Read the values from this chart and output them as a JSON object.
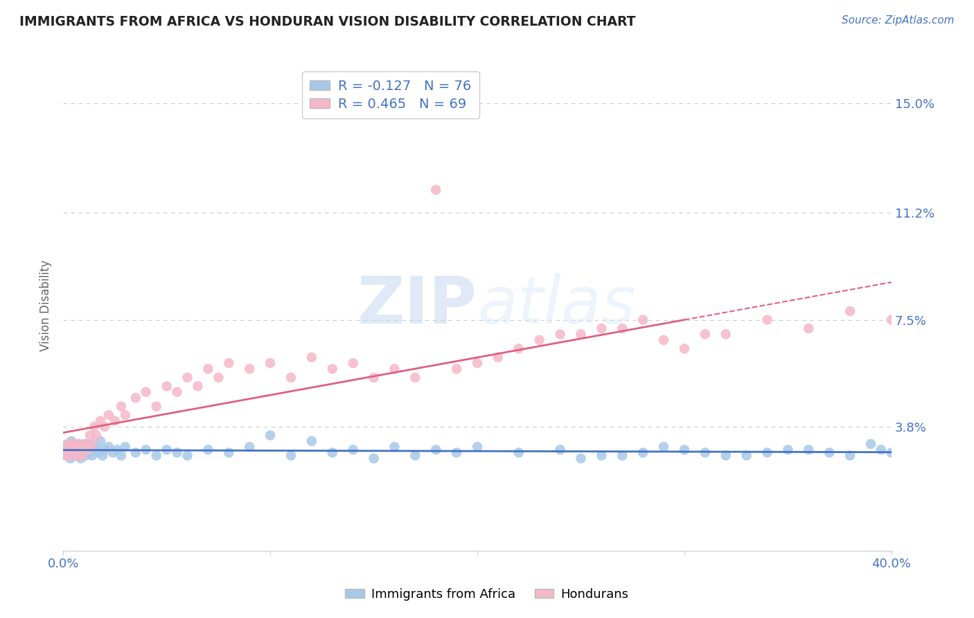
{
  "title": "IMMIGRANTS FROM AFRICA VS HONDURAN VISION DISABILITY CORRELATION CHART",
  "source_text": "Source: ZipAtlas.com",
  "ylabel": "Vision Disability",
  "xlim": [
    0.0,
    40.0
  ],
  "ylim": [
    -0.5,
    16.5
  ],
  "ytick_vals": [
    0.0,
    3.8,
    7.5,
    11.2,
    15.0
  ],
  "ytick_labels": [
    "",
    "3.8%",
    "7.5%",
    "11.2%",
    "15.0%"
  ],
  "xtick_vals": [
    0.0,
    10.0,
    20.0,
    30.0,
    40.0
  ],
  "xtick_labels": [
    "0.0%",
    "",
    "",
    "",
    "40.0%"
  ],
  "legend_label1": "Immigrants from Africa",
  "legend_label2": "Hondurans",
  "R1": -0.127,
  "N1": 76,
  "R2": 0.465,
  "N2": 69,
  "blue_color": "#A8C8E8",
  "pink_color": "#F5B8C8",
  "blue_line_color": "#4472C4",
  "pink_line_color": "#E06080",
  "axis_color": "#4472C4",
  "grid_color": "#CCCCCC",
  "background_color": "#FFFFFF",
  "blue_x": [
    0.1,
    0.15,
    0.2,
    0.25,
    0.3,
    0.35,
    0.4,
    0.45,
    0.5,
    0.55,
    0.6,
    0.65,
    0.7,
    0.75,
    0.8,
    0.85,
    0.9,
    0.95,
    1.0,
    1.05,
    1.1,
    1.15,
    1.2,
    1.25,
    1.3,
    1.4,
    1.5,
    1.6,
    1.7,
    1.8,
    1.9,
    2.0,
    2.2,
    2.4,
    2.6,
    2.8,
    3.0,
    3.5,
    4.0,
    4.5,
    5.0,
    5.5,
    6.0,
    7.0,
    8.0,
    9.0,
    10.0,
    11.0,
    12.0,
    13.0,
    14.0,
    15.0,
    16.0,
    17.0,
    18.0,
    19.0,
    20.0,
    22.0,
    24.0,
    26.0,
    28.0,
    30.0,
    32.0,
    34.0,
    36.0,
    38.0,
    39.0,
    39.5,
    40.0,
    25.0,
    27.0,
    29.0,
    31.0,
    33.0,
    35.0,
    37.0
  ],
  "blue_y": [
    3.0,
    2.8,
    3.2,
    2.9,
    3.1,
    2.7,
    3.3,
    2.8,
    3.0,
    3.2,
    2.9,
    3.1,
    2.8,
    3.0,
    3.2,
    2.7,
    3.1,
    2.9,
    3.0,
    3.2,
    2.8,
    3.1,
    2.9,
    3.0,
    3.2,
    2.8,
    3.0,
    3.1,
    2.9,
    3.3,
    2.8,
    3.0,
    3.1,
    2.9,
    3.0,
    2.8,
    3.1,
    2.9,
    3.0,
    2.8,
    3.0,
    2.9,
    2.8,
    3.0,
    2.9,
    3.1,
    3.5,
    2.8,
    3.3,
    2.9,
    3.0,
    2.7,
    3.1,
    2.8,
    3.0,
    2.9,
    3.1,
    2.9,
    3.0,
    2.8,
    2.9,
    3.0,
    2.8,
    2.9,
    3.0,
    2.8,
    3.2,
    3.0,
    2.9,
    2.7,
    2.8,
    3.1,
    2.9,
    2.8,
    3.0,
    2.9
  ],
  "pink_x": [
    0.1,
    0.15,
    0.2,
    0.25,
    0.3,
    0.35,
    0.4,
    0.45,
    0.5,
    0.55,
    0.6,
    0.65,
    0.7,
    0.75,
    0.8,
    0.85,
    0.9,
    0.95,
    1.0,
    1.1,
    1.2,
    1.3,
    1.4,
    1.5,
    1.6,
    1.8,
    2.0,
    2.2,
    2.5,
    2.8,
    3.0,
    3.5,
    4.0,
    4.5,
    5.0,
    5.5,
    6.0,
    6.5,
    7.0,
    7.5,
    8.0,
    9.0,
    10.0,
    11.0,
    12.0,
    13.0,
    14.0,
    15.0,
    16.0,
    18.0,
    20.0,
    22.0,
    24.0,
    26.0,
    28.0,
    30.0,
    32.0,
    34.0,
    36.0,
    38.0,
    40.0,
    19.0,
    17.0,
    21.0,
    23.0,
    25.0,
    27.0,
    29.0,
    31.0
  ],
  "pink_y": [
    2.8,
    3.0,
    2.9,
    3.2,
    3.1,
    2.8,
    3.0,
    2.9,
    3.2,
    3.0,
    3.1,
    2.8,
    3.0,
    3.2,
    2.9,
    3.1,
    2.8,
    3.0,
    3.1,
    3.2,
    3.0,
    3.5,
    3.2,
    3.8,
    3.5,
    4.0,
    3.8,
    4.2,
    4.0,
    4.5,
    4.2,
    4.8,
    5.0,
    4.5,
    5.2,
    5.0,
    5.5,
    5.2,
    5.8,
    5.5,
    6.0,
    5.8,
    6.0,
    5.5,
    6.2,
    5.8,
    6.0,
    5.5,
    5.8,
    12.0,
    6.0,
    6.5,
    7.0,
    7.2,
    7.5,
    6.5,
    7.0,
    7.5,
    7.2,
    7.8,
    7.5,
    5.8,
    5.5,
    6.2,
    6.8,
    7.0,
    7.2,
    6.8,
    7.0
  ]
}
